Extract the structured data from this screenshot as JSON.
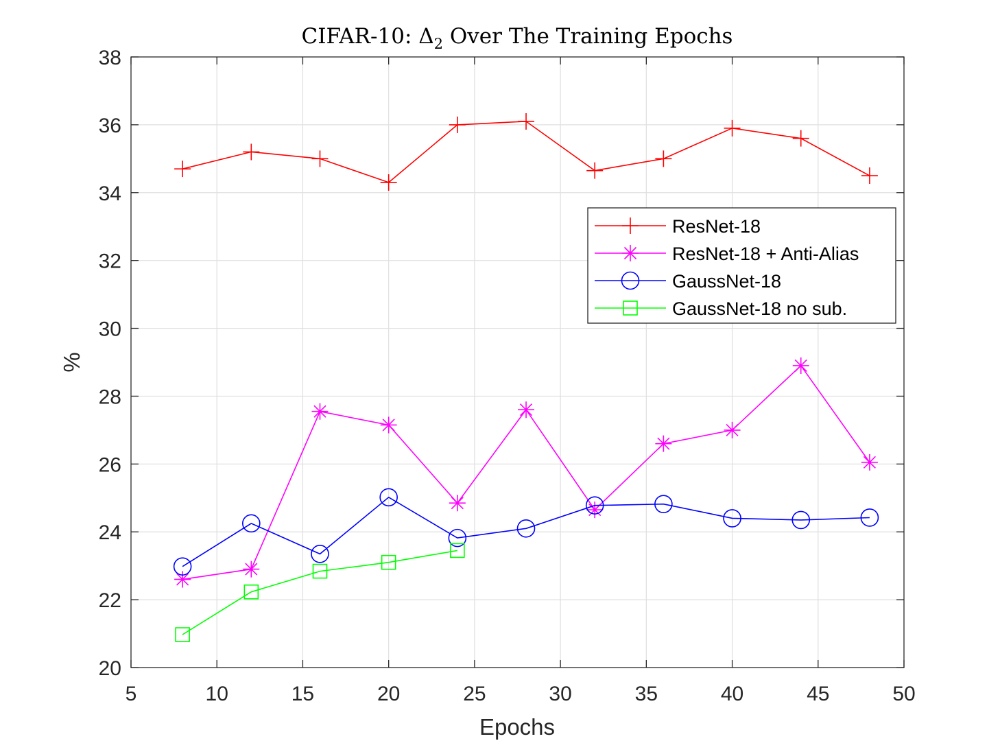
{
  "chart_data": {
    "type": "line",
    "title": "CIFAR-10: Δ₂ Over The Training Epochs",
    "title_main": "CIFAR-10: Δ",
    "title_sub": "2",
    "title_rest": " Over The Training Epochs",
    "xlabel": "Epochs",
    "ylabel": "%",
    "xlim": [
      5,
      50
    ],
    "ylim": [
      20,
      38
    ],
    "xticks": [
      5,
      10,
      15,
      20,
      25,
      30,
      35,
      40,
      45,
      50
    ],
    "yticks": [
      20,
      22,
      24,
      26,
      28,
      30,
      32,
      34,
      36,
      38
    ],
    "grid": true,
    "legend_position": "upper-right",
    "series": [
      {
        "name": "ResNet-18",
        "color": "#ff0000",
        "marker": "plus",
        "x": [
          8,
          12,
          16,
          20,
          24,
          28,
          32,
          36,
          40,
          44,
          48
        ],
        "y": [
          34.7,
          35.2,
          35.0,
          34.3,
          36.0,
          36.1,
          34.65,
          35.0,
          35.9,
          35.6,
          34.5
        ]
      },
      {
        "name": "ResNet-18 + Anti-Alias",
        "color": "#ff00ff",
        "marker": "asterisk",
        "x": [
          8,
          12,
          16,
          20,
          24,
          28,
          32,
          36,
          40,
          44,
          48
        ],
        "y": [
          22.6,
          22.9,
          27.55,
          27.15,
          24.85,
          27.6,
          24.65,
          26.6,
          27.0,
          28.9,
          26.05
        ]
      },
      {
        "name": "GaussNet-18",
        "color": "#0000ff",
        "marker": "circle",
        "x": [
          8,
          12,
          16,
          20,
          24,
          28,
          32,
          36,
          40,
          44,
          48
        ],
        "y": [
          22.98,
          24.25,
          23.35,
          25.02,
          23.82,
          24.1,
          24.78,
          24.82,
          24.4,
          24.35,
          24.42
        ]
      },
      {
        "name": "GaussNet-18 no sub.",
        "color": "#00ff00",
        "marker": "square",
        "x": [
          8,
          12,
          16,
          20,
          24
        ],
        "y": [
          20.97,
          22.23,
          22.84,
          23.1,
          23.45
        ]
      }
    ]
  }
}
